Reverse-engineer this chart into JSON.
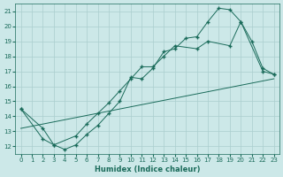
{
  "xlabel": "Humidex (Indice chaleur)",
  "bg_color": "#cce8e8",
  "grid_color": "#aacece",
  "line_color": "#1a6b5a",
  "xlim": [
    -0.5,
    23.5
  ],
  "ylim": [
    11.5,
    21.5
  ],
  "xticks": [
    0,
    1,
    2,
    3,
    4,
    5,
    6,
    7,
    8,
    9,
    10,
    11,
    12,
    13,
    14,
    15,
    16,
    17,
    18,
    19,
    20,
    21,
    22,
    23
  ],
  "yticks": [
    12,
    13,
    14,
    15,
    16,
    17,
    18,
    19,
    20,
    21
  ],
  "line1_x": [
    0,
    2,
    3,
    4,
    5,
    6,
    7,
    8,
    9,
    10,
    11,
    12,
    13,
    14,
    15,
    16,
    17,
    18,
    19,
    20,
    21,
    22,
    23
  ],
  "line1_y": [
    14.5,
    13.2,
    12.1,
    11.8,
    12.1,
    12.8,
    13.4,
    14.2,
    15.0,
    16.6,
    16.5,
    17.2,
    18.3,
    18.5,
    19.2,
    19.3,
    20.3,
    21.2,
    21.1,
    20.3,
    19.0,
    17.2,
    16.8
  ],
  "line2_x": [
    0,
    2,
    3,
    5,
    6,
    7,
    8,
    9,
    10,
    11,
    12,
    13,
    14,
    16,
    17,
    19,
    20,
    22,
    23
  ],
  "line2_y": [
    14.5,
    12.5,
    12.1,
    12.7,
    13.5,
    14.2,
    14.9,
    15.7,
    16.5,
    17.3,
    17.3,
    18.0,
    18.7,
    18.5,
    19.0,
    18.7,
    20.3,
    17.0,
    16.8
  ],
  "line3_x": [
    0,
    23
  ],
  "line3_y": [
    13.2,
    16.5
  ]
}
